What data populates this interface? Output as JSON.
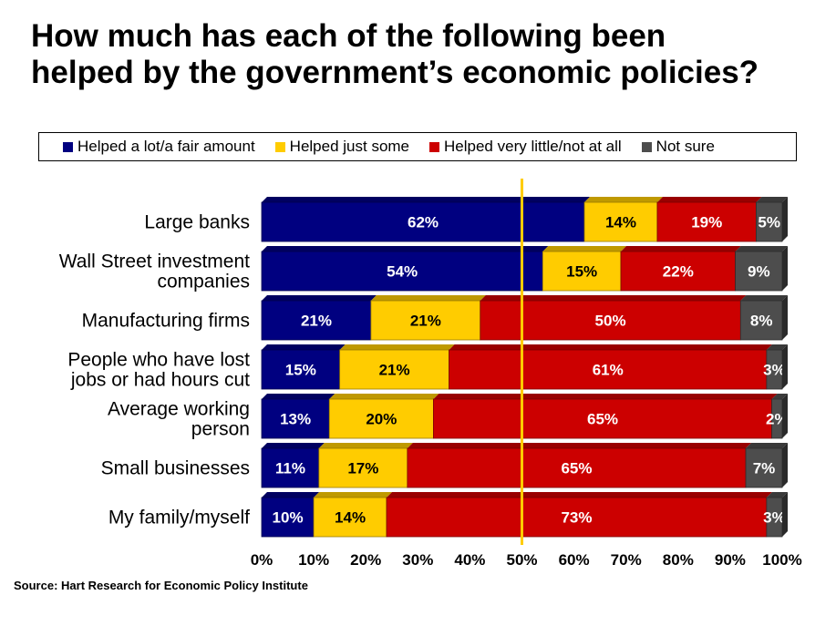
{
  "title_lines": [
    "How much has each of the following been",
    "helped by the government’s economic policies?"
  ],
  "source": "Source: Hart Research for Economic Policy Institute",
  "chart_data": {
    "type": "bar",
    "orientation": "horizontal",
    "stacked": true,
    "percent_scale": true,
    "title": "How much has each of the following been helped by the government’s economic policies?",
    "categories": [
      [
        "Large banks"
      ],
      [
        "Wall Street investment",
        "companies"
      ],
      [
        "Manufacturing firms"
      ],
      [
        "People who have lost",
        "jobs or had hours cut"
      ],
      [
        "Average working",
        "person"
      ],
      [
        "Small businesses"
      ],
      [
        "My family/myself"
      ]
    ],
    "series": [
      {
        "name": "Helped a lot/a fair amount",
        "color": "#000080",
        "label_color": "#ffffff",
        "values": [
          62,
          54,
          21,
          15,
          13,
          11,
          10
        ]
      },
      {
        "name": "Helped just some",
        "color": "#ffcc00",
        "label_color": "#000000",
        "values": [
          14,
          15,
          21,
          21,
          20,
          17,
          14
        ]
      },
      {
        "name": "Helped very little/not at all",
        "color": "#cc0000",
        "label_color": "#ffffff",
        "values": [
          19,
          22,
          50,
          61,
          65,
          65,
          73
        ]
      },
      {
        "name": "Not sure",
        "color": "#4d4d4d",
        "label_color": "#ffffff",
        "values": [
          5,
          9,
          8,
          3,
          2,
          7,
          3
        ]
      }
    ],
    "xlim": [
      0,
      100
    ],
    "x_ticks": [
      "0%",
      "10%",
      "20%",
      "30%",
      "40%",
      "50%",
      "60%",
      "70%",
      "80%",
      "90%",
      "100%"
    ],
    "reference_line": {
      "value": 50,
      "color": "#ffcc00"
    },
    "legend_position": "top",
    "grid": false
  }
}
